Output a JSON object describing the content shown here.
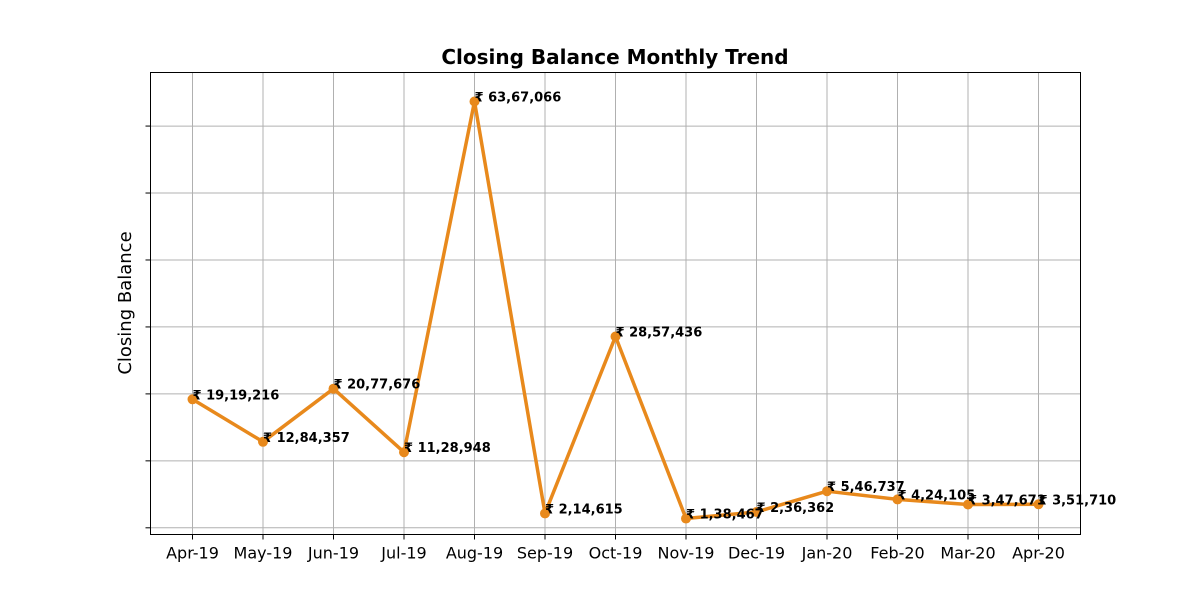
{
  "chart_data": {
    "type": "line",
    "title": "Closing Balance Monthly Trend",
    "xlabel": "",
    "ylabel": "Closing Balance",
    "categories": [
      "Apr-19",
      "May-19",
      "Jun-19",
      "Jul-19",
      "Aug-19",
      "Sep-19",
      "Oct-19",
      "Nov-19",
      "Dec-19",
      "Jan-20",
      "Feb-20",
      "Mar-20",
      "Apr-20"
    ],
    "series": [
      {
        "values": [
          1919216,
          1284357,
          2077676,
          1128948,
          6367066,
          214615,
          2857436,
          138467,
          236362,
          546737,
          424105,
          347671,
          351710
        ],
        "labels": [
          "₹ 19,19,216",
          "₹ 12,84,357",
          "₹ 20,77,676",
          "₹ 11,28,948",
          "₹ 63,67,066",
          "₹ 2,14,615",
          "₹ 28,57,436",
          "₹ 1,38,467",
          "₹ 2,36,362",
          "₹ 5,46,737",
          "₹ 4,24,105",
          "₹ 3,47,671",
          "₹ 3,51,710"
        ],
        "color": "#e8891c"
      }
    ],
    "ylim": [
      -100000,
      6800000
    ],
    "yticks": [
      0,
      1000000,
      2000000,
      3000000,
      4000000,
      5000000,
      6000000
    ],
    "ytick_labels_shown": false,
    "grid": true,
    "legend": "none"
  }
}
